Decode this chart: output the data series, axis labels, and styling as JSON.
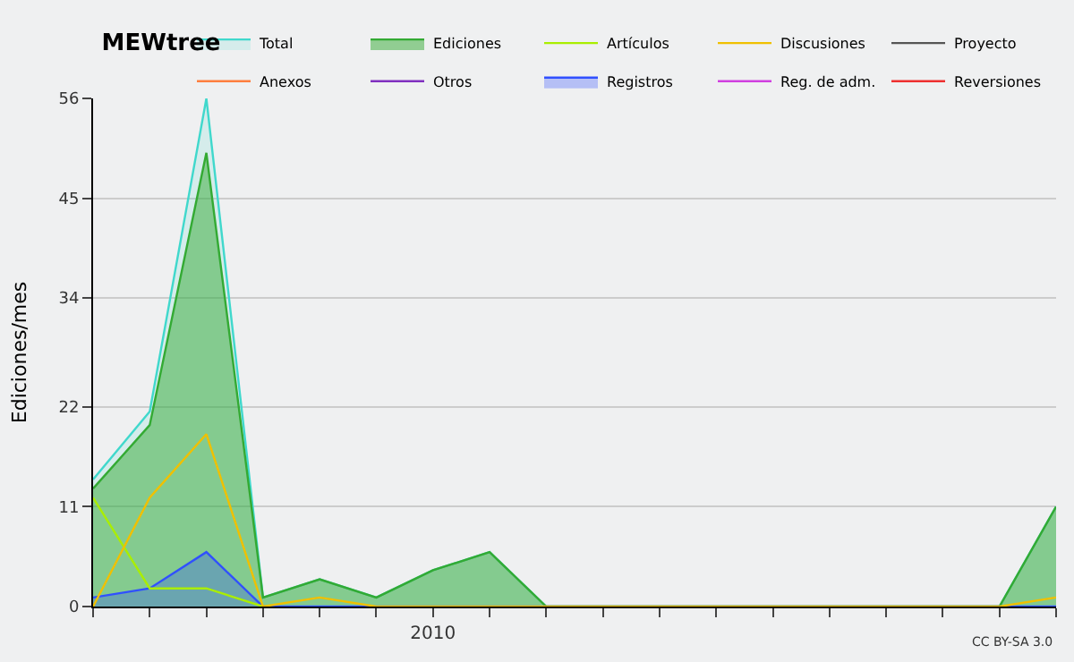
{
  "chart_data": {
    "type": "line",
    "title": "MEWtree",
    "ylabel": "Ediciones/mes",
    "categories": [
      null,
      null,
      null,
      null,
      null,
      null,
      "2010",
      null,
      null,
      null,
      null,
      null,
      null,
      null,
      null,
      null,
      null,
      null
    ],
    "series": [
      {
        "name": "Total",
        "type": "area",
        "color": "#40d8cc",
        "values": [
          14,
          21.5,
          56,
          1,
          3,
          1,
          4,
          6,
          0,
          0,
          0,
          0,
          0,
          0,
          0,
          0,
          0,
          11
        ]
      },
      {
        "name": "Ediciones",
        "type": "area",
        "color": "#33aa33",
        "values": [
          13,
          20,
          50,
          1,
          3,
          1,
          4,
          6,
          0,
          0,
          0,
          0,
          0,
          0,
          0,
          0,
          0,
          11
        ]
      },
      {
        "name": "Artículos",
        "color": "#aaee00",
        "values": [
          12,
          2,
          2,
          0,
          null,
          null,
          null,
          null,
          null,
          null,
          null,
          null,
          null,
          null,
          null,
          null,
          null,
          null
        ]
      },
      {
        "name": "Discusiones",
        "color": "#f0c000",
        "values": [
          0,
          12,
          19,
          0,
          1,
          0,
          0,
          0,
          0,
          0,
          0,
          0,
          0,
          0,
          0,
          0,
          0,
          1
        ]
      },
      {
        "name": "Proyecto",
        "color": "#555555",
        "values": [
          null,
          null,
          null,
          null,
          null,
          null,
          null,
          null,
          null,
          null,
          null,
          null,
          null,
          null,
          null,
          null,
          null,
          null
        ]
      },
      {
        "name": "Anexos",
        "color": "#ff7f3f",
        "values": [
          null,
          null,
          null,
          null,
          null,
          null,
          null,
          null,
          null,
          null,
          null,
          null,
          null,
          null,
          null,
          null,
          null,
          null
        ]
      },
      {
        "name": "Otros",
        "color": "#8030c0",
        "values": [
          null,
          null,
          null,
          null,
          null,
          null,
          null,
          null,
          null,
          null,
          null,
          null,
          null,
          null,
          null,
          null,
          null,
          null
        ]
      },
      {
        "name": "Registros",
        "type": "area",
        "color": "#3050ff",
        "values": [
          1,
          2,
          6,
          0,
          0,
          0,
          0,
          0,
          0,
          0,
          0,
          0,
          0,
          0,
          0,
          0,
          0,
          0
        ]
      },
      {
        "name": "Reg. de adm.",
        "color": "#d040e0",
        "values": [
          null,
          null,
          null,
          null,
          null,
          null,
          null,
          null,
          null,
          null,
          null,
          null,
          null,
          null,
          null,
          null,
          null,
          null
        ]
      },
      {
        "name": "Reversiones",
        "color": "#ee3030",
        "values": [
          null,
          null,
          null,
          null,
          null,
          null,
          null,
          null,
          null,
          null,
          null,
          null,
          null,
          null,
          null,
          null,
          null,
          null
        ]
      }
    ],
    "ylim": [
      0,
      56
    ],
    "yticks": [
      0,
      11,
      22,
      34,
      45,
      56
    ],
    "grid": "y",
    "legend": "top right",
    "marker": "none",
    "line_style": "solid",
    "annotations": [
      "CC BY-SA 3.0"
    ]
  }
}
